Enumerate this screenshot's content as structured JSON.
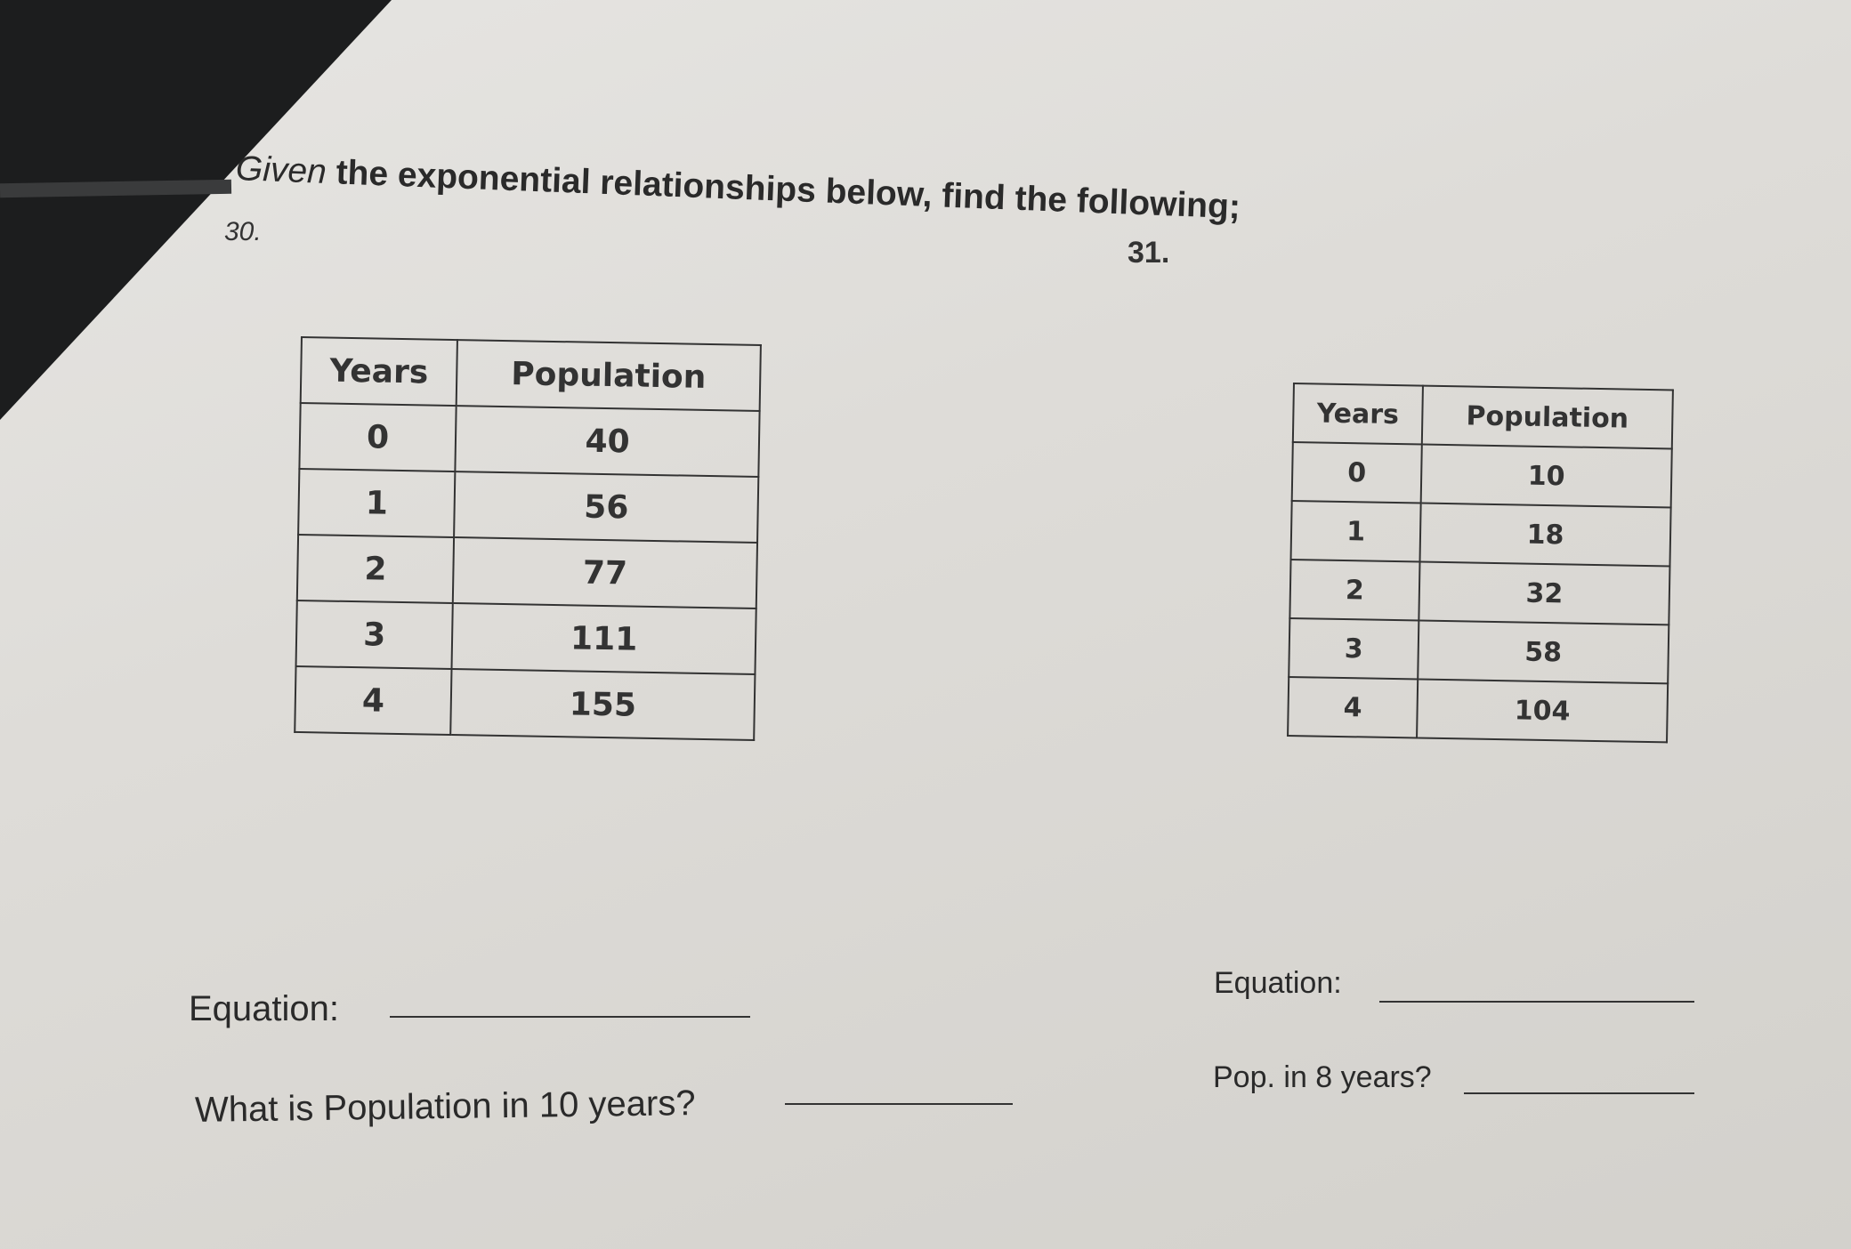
{
  "instruction": {
    "prefix": "Given",
    "text": "the exponential relationships below, find the following;"
  },
  "problems": [
    {
      "number": "30.",
      "table": {
        "headers": [
          "Years",
          "Population"
        ],
        "rows": [
          [
            "0",
            "40"
          ],
          [
            "1",
            "56"
          ],
          [
            "2",
            "77"
          ],
          [
            "3",
            "111"
          ],
          [
            "4",
            "155"
          ]
        ]
      },
      "equation_label": "Equation:",
      "question": "What is Population in 10 years?"
    },
    {
      "number": "31.",
      "table": {
        "headers": [
          "Years",
          "Population"
        ],
        "rows": [
          [
            "0",
            "10"
          ],
          [
            "1",
            "18"
          ],
          [
            "2",
            "32"
          ],
          [
            "3",
            "58"
          ],
          [
            "4",
            "104"
          ]
        ]
      },
      "equation_label": "Equation:",
      "question": "Pop. in 8 years?"
    }
  ]
}
